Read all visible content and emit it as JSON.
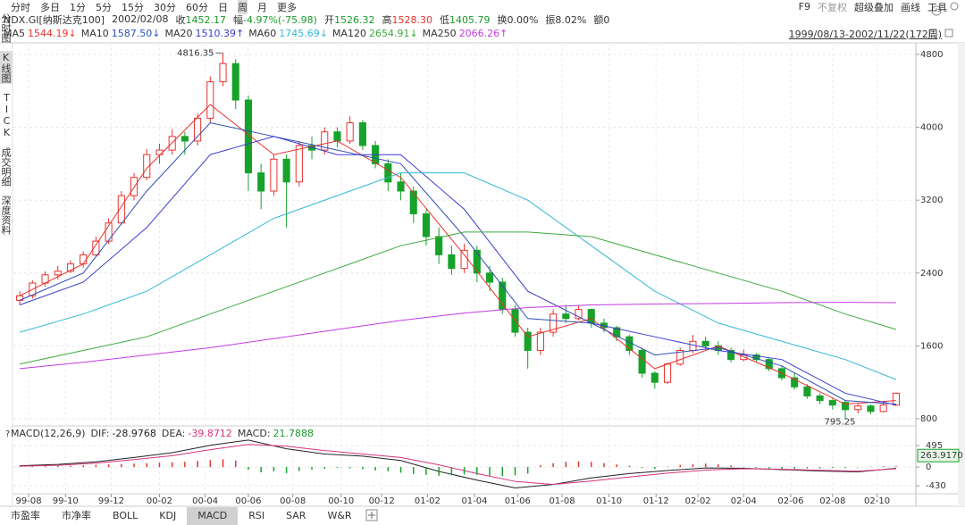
{
  "toolbar": {
    "periods": [
      "分时",
      "多日",
      "1分",
      "5分",
      "15分",
      "30分",
      "60分",
      "日",
      "周",
      "月",
      "更多"
    ],
    "selected_index": 8,
    "tools": [
      "F9",
      "不复权",
      "超级叠加",
      "画线",
      "工具"
    ]
  },
  "quote": {
    "symbol": "NDX.GI[纳斯达克100]",
    "date": "2002/02/08",
    "fields": [
      {
        "label": "收",
        "value": "1452.17",
        "color": "#1a9a2a"
      },
      {
        "label": "幅",
        "value": "-4.97%(-75.98)",
        "color": "#1a9a2a"
      },
      {
        "label": "开",
        "value": "1526.32",
        "color": "#1a9a2a"
      },
      {
        "label": "高",
        "value": "1528.30",
        "color": "#e8322d"
      },
      {
        "label": "低",
        "value": "1405.79",
        "color": "#1a9a2a"
      },
      {
        "label": "换",
        "value": "0.00%",
        "color": "#333333"
      },
      {
        "label": "振",
        "value": "8.02%",
        "color": "#333333"
      },
      {
        "label": "额",
        "value": "0",
        "color": "#333333"
      }
    ]
  },
  "range_label": "1999/08/13-2002/11/22(172周)",
  "sidebar": {
    "tabs": [
      "分时图",
      "K线图",
      "TICK",
      "成交明细",
      "深度资料"
    ],
    "selected_index": 1
  },
  "bottom_tabs": {
    "tabs": [
      "市盈率",
      "市净率",
      "BOLL",
      "KDJ",
      "MACD",
      "RSI",
      "SAR",
      "W&R"
    ],
    "selected_index": 4
  },
  "chart_data": [
    {
      "type": "candlestick",
      "xlim": [
        -0.5,
        69.5
      ],
      "ylim": [
        741,
        4908
      ],
      "yticks": [
        800,
        1600,
        2400,
        3200,
        4000,
        4800
      ],
      "grid": true,
      "up_color": "#e8322d",
      "down_color": "#17a22a",
      "xticks": [
        {
          "value": 0.7,
          "label": "99-08"
        },
        {
          "value": 3.6,
          "label": "99-10"
        },
        {
          "value": 7.2,
          "label": "99-12"
        },
        {
          "value": 11,
          "label": "00-02"
        },
        {
          "value": 14.6,
          "label": "00-04"
        },
        {
          "value": 18,
          "label": "00-06"
        },
        {
          "value": 21.5,
          "label": "00-08"
        },
        {
          "value": 25.3,
          "label": "00-10"
        },
        {
          "value": 28.5,
          "label": "00-12"
        },
        {
          "value": 32.1,
          "label": "01-02"
        },
        {
          "value": 35.8,
          "label": "01-04"
        },
        {
          "value": 39.2,
          "label": "01-06"
        },
        {
          "value": 42.7,
          "label": "01-08"
        },
        {
          "value": 46.4,
          "label": "01-10"
        },
        {
          "value": 50.1,
          "label": "01-12"
        },
        {
          "value": 53.4,
          "label": "02-02"
        },
        {
          "value": 57,
          "label": "02-04"
        },
        {
          "value": 60.7,
          "label": "02-06"
        },
        {
          "value": 64,
          "label": "02-08"
        },
        {
          "value": 67.5,
          "label": "02-10"
        }
      ],
      "candles": [
        [
          2100,
          2200,
          2050,
          2150
        ],
        [
          2150,
          2320,
          2120,
          2290
        ],
        [
          2290,
          2420,
          2250,
          2380
        ],
        [
          2380,
          2480,
          2330,
          2420
        ],
        [
          2420,
          2540,
          2400,
          2500
        ],
        [
          2500,
          2640,
          2460,
          2600
        ],
        [
          2600,
          2800,
          2580,
          2750
        ],
        [
          2750,
          3000,
          2720,
          2950
        ],
        [
          2950,
          3300,
          2930,
          3250
        ],
        [
          3250,
          3500,
          3200,
          3450
        ],
        [
          3450,
          3760,
          3420,
          3700
        ],
        [
          3700,
          3820,
          3600,
          3750
        ],
        [
          3750,
          3980,
          3700,
          3900
        ],
        [
          3900,
          3950,
          3700,
          3850
        ],
        [
          3850,
          4150,
          3800,
          4100
        ],
        [
          4100,
          4560,
          4050,
          4500
        ],
        [
          4500,
          4816.35,
          4450,
          4700
        ],
        [
          4700,
          4750,
          4200,
          4300
        ],
        [
          4300,
          4350,
          3300,
          3500
        ],
        [
          3500,
          3600,
          3100,
          3300
        ],
        [
          3300,
          3700,
          3250,
          3650
        ],
        [
          3650,
          3700,
          2900,
          3400
        ],
        [
          3400,
          3850,
          3350,
          3800
        ],
        [
          3800,
          3900,
          3650,
          3750
        ],
        [
          3750,
          4000,
          3700,
          3950
        ],
        [
          3950,
          4000,
          3780,
          3850
        ],
        [
          3850,
          4120,
          3820,
          4050
        ],
        [
          4050,
          4080,
          3750,
          3800
        ],
        [
          3800,
          3850,
          3550,
          3600
        ],
        [
          3600,
          3650,
          3300,
          3400
        ],
        [
          3400,
          3500,
          3200,
          3300
        ],
        [
          3300,
          3350,
          2950,
          3050
        ],
        [
          3050,
          3100,
          2700,
          2800
        ],
        [
          2800,
          2900,
          2500,
          2600
        ],
        [
          2600,
          2700,
          2380,
          2450
        ],
        [
          2450,
          2720,
          2400,
          2650
        ],
        [
          2650,
          2700,
          2300,
          2400
        ],
        [
          2400,
          2480,
          2200,
          2300
        ],
        [
          2300,
          2350,
          1950,
          2000
        ],
        [
          2000,
          2050,
          1700,
          1750
        ],
        [
          1750,
          1800,
          1350,
          1550
        ],
        [
          1550,
          1800,
          1500,
          1750
        ],
        [
          1750,
          2000,
          1700,
          1950
        ],
        [
          1950,
          2050,
          1850,
          1900
        ],
        [
          1900,
          2050,
          1880,
          2000
        ],
        [
          2000,
          2010,
          1800,
          1850
        ],
        [
          1850,
          1900,
          1750,
          1800
        ],
        [
          1800,
          1820,
          1650,
          1700
        ],
        [
          1700,
          1720,
          1500,
          1550
        ],
        [
          1550,
          1580,
          1250,
          1300
        ],
        [
          1300,
          1320,
          1130,
          1200
        ],
        [
          1200,
          1420,
          1180,
          1400
        ],
        [
          1400,
          1580,
          1380,
          1550
        ],
        [
          1550,
          1720,
          1520,
          1650
        ],
        [
          1650,
          1700,
          1560,
          1600
        ],
        [
          1600,
          1650,
          1500,
          1550
        ],
        [
          1550,
          1580,
          1420,
          1450
        ],
        [
          1450,
          1560,
          1430,
          1500
        ],
        [
          1500,
          1520,
          1420,
          1450
        ],
        [
          1450,
          1470,
          1320,
          1350
        ],
        [
          1350,
          1380,
          1220,
          1250
        ],
        [
          1250,
          1300,
          1120,
          1150
        ],
        [
          1150,
          1180,
          1020,
          1050
        ],
        [
          1050,
          1080,
          960,
          1000
        ],
        [
          1000,
          1020,
          900,
          950
        ],
        [
          980,
          1000,
          795.25,
          900
        ],
        [
          900,
          960,
          860,
          940
        ],
        [
          940,
          960,
          850,
          880
        ],
        [
          880,
          980,
          870,
          950
        ],
        [
          950,
          1090,
          940,
          1080
        ]
      ],
      "ma": [
        {
          "name": "MA5",
          "color": "#e8322d",
          "current": {
            "value": 1544.19,
            "label": "1544.19↓"
          },
          "x": [
            0,
            5,
            10,
            15,
            20,
            25,
            30,
            35,
            40,
            45,
            50,
            55,
            60,
            65,
            69
          ],
          "values": [
            2150,
            2500,
            3550,
            4250,
            3700,
            3850,
            3450,
            2600,
            1700,
            1900,
            1350,
            1600,
            1300,
            960,
            1000
          ]
        },
        {
          "name": "MA10",
          "color": "#2f4fb5",
          "current": {
            "value": 1587.5,
            "label": "1587.50↓"
          },
          "x": [
            0,
            5,
            10,
            15,
            20,
            25,
            30,
            35,
            40,
            45,
            50,
            55,
            60,
            65,
            69
          ],
          "values": [
            2100,
            2400,
            3300,
            4050,
            3900,
            3750,
            3600,
            2800,
            1900,
            1850,
            1500,
            1580,
            1380,
            1000,
            960
          ]
        },
        {
          "name": "MA20",
          "color": "#3a3ad0",
          "current": {
            "value": 1510.39,
            "label": "1510.39↑"
          },
          "x": [
            0,
            5,
            10,
            15,
            20,
            25,
            30,
            35,
            40,
            45,
            50,
            55,
            60,
            65,
            69
          ],
          "values": [
            2050,
            2300,
            2900,
            3700,
            3900,
            3700,
            3700,
            3100,
            2200,
            1850,
            1700,
            1550,
            1450,
            1080,
            950
          ]
        },
        {
          "name": "MA60",
          "color": "#35b8d8",
          "current": {
            "value": 1745.69,
            "label": "1745.69↓"
          },
          "x": [
            0,
            5,
            10,
            15,
            20,
            25,
            30,
            35,
            40,
            45,
            50,
            55,
            60,
            65,
            69
          ],
          "values": [
            1750,
            1950,
            2200,
            2600,
            3000,
            3250,
            3500,
            3500,
            3200,
            2700,
            2200,
            1850,
            1650,
            1450,
            1230
          ]
        },
        {
          "name": "MA120",
          "color": "#3caa3c",
          "current": {
            "value": 2654.91,
            "label": "2654.91↓"
          },
          "x": [
            0,
            5,
            10,
            15,
            20,
            25,
            30,
            35,
            40,
            45,
            50,
            55,
            60,
            65,
            69
          ],
          "values": [
            1400,
            1550,
            1700,
            1950,
            2200,
            2450,
            2700,
            2850,
            2850,
            2800,
            2600,
            2400,
            2200,
            1950,
            1780
          ]
        },
        {
          "name": "MA250",
          "color": "#c23ce0",
          "current": {
            "value": 2066.26,
            "label": "2066.26↑"
          },
          "x": [
            0,
            5,
            10,
            15,
            20,
            25,
            30,
            35,
            40,
            45,
            50,
            55,
            60,
            65,
            69
          ],
          "values": [
            1350,
            1420,
            1500,
            1580,
            1680,
            1780,
            1880,
            1960,
            2020,
            2050,
            2060,
            2066,
            2075,
            2078,
            2075
          ]
        }
      ]
    },
    {
      "type": "macd",
      "title": "MACD(12,26,9)",
      "xlim": [
        -0.5,
        69.5
      ],
      "ylim": [
        -593,
        843
      ],
      "yticks": [
        495,
        0,
        -430
      ],
      "grid": true,
      "up_color": "#e8322d",
      "down_color": "#17a22a",
      "current": {
        "value": 263.917,
        "label": "263.9170"
      },
      "series": [
        {
          "name": "DIF:",
          "color": "#222222",
          "current": -28.9768,
          "x": [
            0,
            3,
            6,
            9,
            12,
            15,
            18,
            21,
            24,
            27,
            30,
            33,
            36,
            39,
            42,
            45,
            48,
            51,
            54,
            57,
            60,
            63,
            66,
            69
          ],
          "values": [
            30,
            60,
            120,
            220,
            330,
            500,
            620,
            420,
            300,
            250,
            150,
            -100,
            -300,
            -480,
            -400,
            -250,
            -150,
            -80,
            -20,
            -30,
            -60,
            -90,
            -110,
            -29
          ]
        },
        {
          "name": "DEA:",
          "color": "#d6337a",
          "current": -39.8712,
          "x": [
            0,
            3,
            6,
            9,
            12,
            15,
            18,
            21,
            24,
            27,
            30,
            33,
            36,
            39,
            42,
            45,
            48,
            51,
            54,
            57,
            60,
            63,
            66,
            69
          ],
          "values": [
            20,
            40,
            90,
            170,
            260,
            400,
            520,
            480,
            380,
            300,
            220,
            50,
            -150,
            -330,
            -400,
            -320,
            -230,
            -140,
            -70,
            -40,
            -50,
            -75,
            -95,
            -40
          ]
        },
        {
          "name": "MACD:",
          "color": "#1a9a2a",
          "current": 21.7888,
          "kind": "histogram",
          "values": [
            10,
            15,
            20,
            25,
            30,
            40,
            50,
            60,
            70,
            80,
            90,
            100,
            110,
            120,
            140,
            160,
            180,
            150,
            -60,
            -120,
            -100,
            -140,
            -90,
            -60,
            -40,
            -20,
            -30,
            -50,
            -80,
            -100,
            -130,
            -160,
            -180,
            -200,
            -190,
            -170,
            -180,
            -200,
            -210,
            -190,
            -150,
            40,
            90,
            120,
            130,
            120,
            90,
            60,
            30,
            -20,
            -40,
            10,
            50,
            70,
            80,
            60,
            40,
            -10,
            -20,
            -30,
            -40,
            -40,
            -30,
            -30,
            -20,
            -20,
            -10,
            10,
            20,
            22
          ]
        }
      ]
    }
  ]
}
